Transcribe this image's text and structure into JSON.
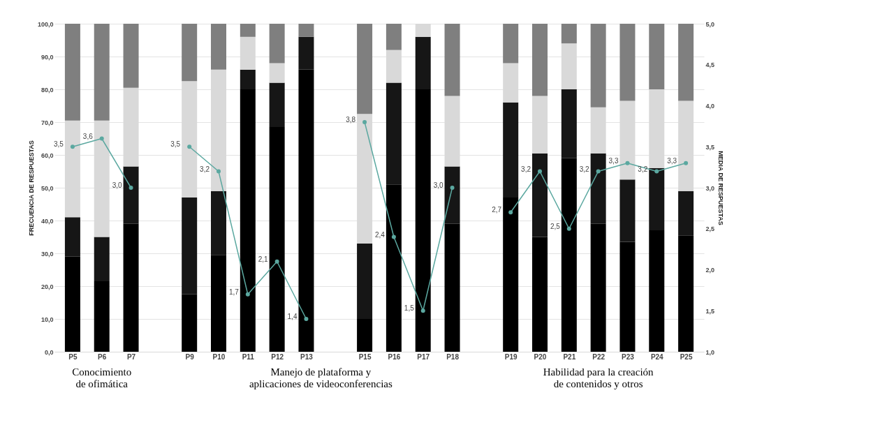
{
  "chart_data": {
    "type": "bar",
    "stacked": true,
    "grid": "y",
    "legend": false,
    "marker": "circle",
    "line_style": "solid",
    "ylabel": "FRECUENCIA DE RESPUESTAS",
    "y2label": "MEDIA DE RESPUESTAS",
    "categories": [
      "P5",
      "P6",
      "P7",
      null,
      "P9",
      "P10",
      "P11",
      "P12",
      "P13",
      null,
      "P15",
      "P16",
      "P17",
      "P18",
      null,
      "P19",
      "P20",
      "P21",
      "P22",
      "P23",
      "P24",
      "P25"
    ],
    "ylim": [
      0,
      100
    ],
    "yticks": [
      {
        "value": 0,
        "label": "0,0"
      },
      {
        "value": 10,
        "label": "10,0"
      },
      {
        "value": 20,
        "label": "20,0"
      },
      {
        "value": 30,
        "label": "30,0"
      },
      {
        "value": 40,
        "label": "40,0"
      },
      {
        "value": 50,
        "label": "50,0"
      },
      {
        "value": 60,
        "label": "60,0"
      },
      {
        "value": 70,
        "label": "70,0"
      },
      {
        "value": 80,
        "label": "80,0"
      },
      {
        "value": 90,
        "label": "90,0"
      },
      {
        "value": 100,
        "label": "100,0"
      }
    ],
    "y2lim": [
      1,
      5
    ],
    "y2ticks": [
      {
        "value": 1,
        "label": "1,0"
      },
      {
        "value": 1.5,
        "label": "1,5"
      },
      {
        "value": 2,
        "label": "2,0"
      },
      {
        "value": 2.5,
        "label": "2,5"
      },
      {
        "value": 3,
        "label": "3,0"
      },
      {
        "value": 3.5,
        "label": "3,5"
      },
      {
        "value": 4,
        "label": "4,0"
      },
      {
        "value": 4.5,
        "label": "4,5"
      },
      {
        "value": 5,
        "label": "5,0"
      }
    ],
    "series": [
      {
        "color": "#000000",
        "values": [
          29,
          21.5,
          39,
          null,
          17.5,
          29.5,
          80,
          68.5,
          86,
          null,
          10,
          51,
          80,
          39,
          null,
          47,
          35,
          59,
          39,
          33.5,
          37,
          35.5
        ]
      },
      {
        "color": "#161616",
        "values": [
          12,
          13.5,
          17.5,
          null,
          29.5,
          19.5,
          6,
          13.5,
          10,
          null,
          23,
          31,
          16,
          17.5,
          null,
          29,
          25.5,
          21,
          21.5,
          19,
          19,
          13.5
        ]
      },
      {
        "color": "#d9d9d9",
        "values": [
          29.5,
          35.5,
          24,
          null,
          35.5,
          37,
          10,
          6,
          0,
          null,
          39.5,
          10,
          4,
          21.5,
          null,
          12,
          17.5,
          14,
          14,
          24,
          24,
          27.5
        ]
      },
      {
        "color": "#7f7f7f",
        "values": [
          29.5,
          29.5,
          19.5,
          null,
          17.5,
          14,
          4,
          12,
          4,
          null,
          27.5,
          8,
          0,
          22,
          null,
          12,
          22,
          6,
          25.5,
          23.5,
          20,
          23.5
        ]
      },
      {
        "type": "line",
        "axis": "y2",
        "color": "#5ba8a0",
        "values": [
          3.5,
          3.6,
          3.0,
          null,
          3.5,
          3.2,
          1.7,
          2.1,
          1.4,
          null,
          3.8,
          2.4,
          1.5,
          3.0,
          null,
          2.7,
          3.2,
          2.5,
          3.2,
          3.3,
          3.2,
          3.3
        ],
        "value_labels": [
          "3,5",
          "3,6",
          "3,0",
          null,
          "3,5",
          "3,2",
          "1,7",
          "2,1",
          "1,4",
          null,
          "3,8",
          "2,4",
          "1,5",
          "3,0",
          null,
          "2,7",
          "3,2",
          "2,5",
          "3,2",
          "3,3",
          "3,2",
          "3,3"
        ]
      }
    ],
    "annotations": [
      "Conocimiento\nde ofimática",
      "Manejo de plataforma y\naplicaciones de videoconferencias",
      "Habilidad para la creación\nde contenidos y otros"
    ]
  }
}
